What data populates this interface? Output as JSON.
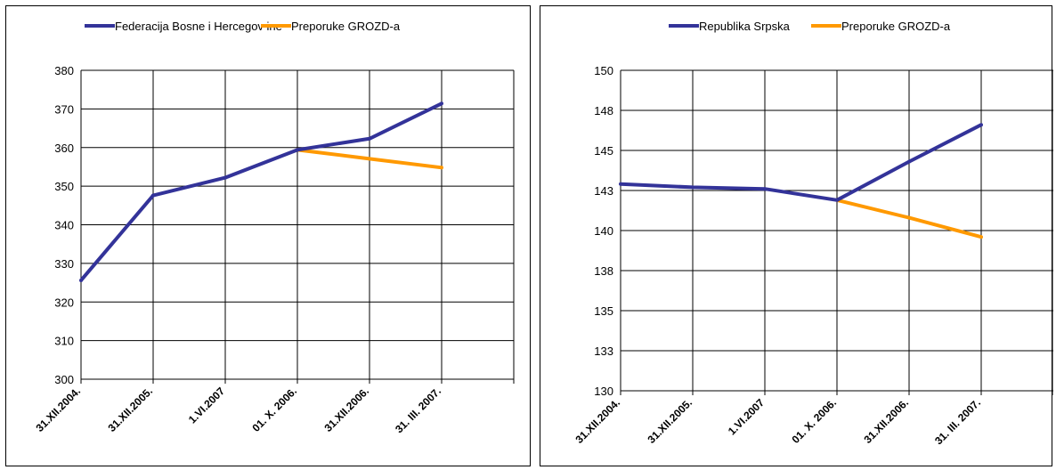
{
  "chart_data": [
    {
      "type": "line",
      "categories": [
        "31.XII.2004.",
        "31.XII.2005.",
        "1.VI.2007",
        "01. X. 2006.",
        "31.XII.2006.",
        "31. III. 2007."
      ],
      "ylim": [
        300,
        380
      ],
      "yticks": [
        "300",
        "310",
        "320",
        "330",
        "340",
        "350",
        "360",
        "370",
        "380"
      ],
      "grid": true,
      "legend_position": "top",
      "series": [
        {
          "name": "Federacija Bosne i Hercegov ine",
          "color": "#333399",
          "values": [
            325.6,
            347.6,
            352.2,
            359.4,
            362.3,
            371.4
          ]
        },
        {
          "name": "Preporuke GROZD-a",
          "color": "#FF9900",
          "values": [
            null,
            null,
            null,
            359.4,
            357.1,
            354.8
          ]
        }
      ]
    },
    {
      "type": "line",
      "categories": [
        "31.XII.2004.",
        "31.XII.2005.",
        "1.VI.2007",
        "01. X. 2006.",
        "31.XII.2006.",
        "31. III. 2007."
      ],
      "ylim": [
        130,
        150
      ],
      "yticks": [
        "130",
        "133",
        "135",
        "138",
        "140",
        "143",
        "145",
        "148",
        "150"
      ],
      "grid": true,
      "legend_position": "top",
      "series": [
        {
          "name": "Republika Srpska",
          "color": "#333399",
          "values": [
            142.9,
            142.7,
            142.6,
            141.9,
            144.3,
            146.6
          ]
        },
        {
          "name": "Preporuke GROZD-a",
          "color": "#FF9900",
          "values": [
            null,
            null,
            null,
            141.9,
            140.8,
            139.6
          ]
        }
      ]
    }
  ]
}
